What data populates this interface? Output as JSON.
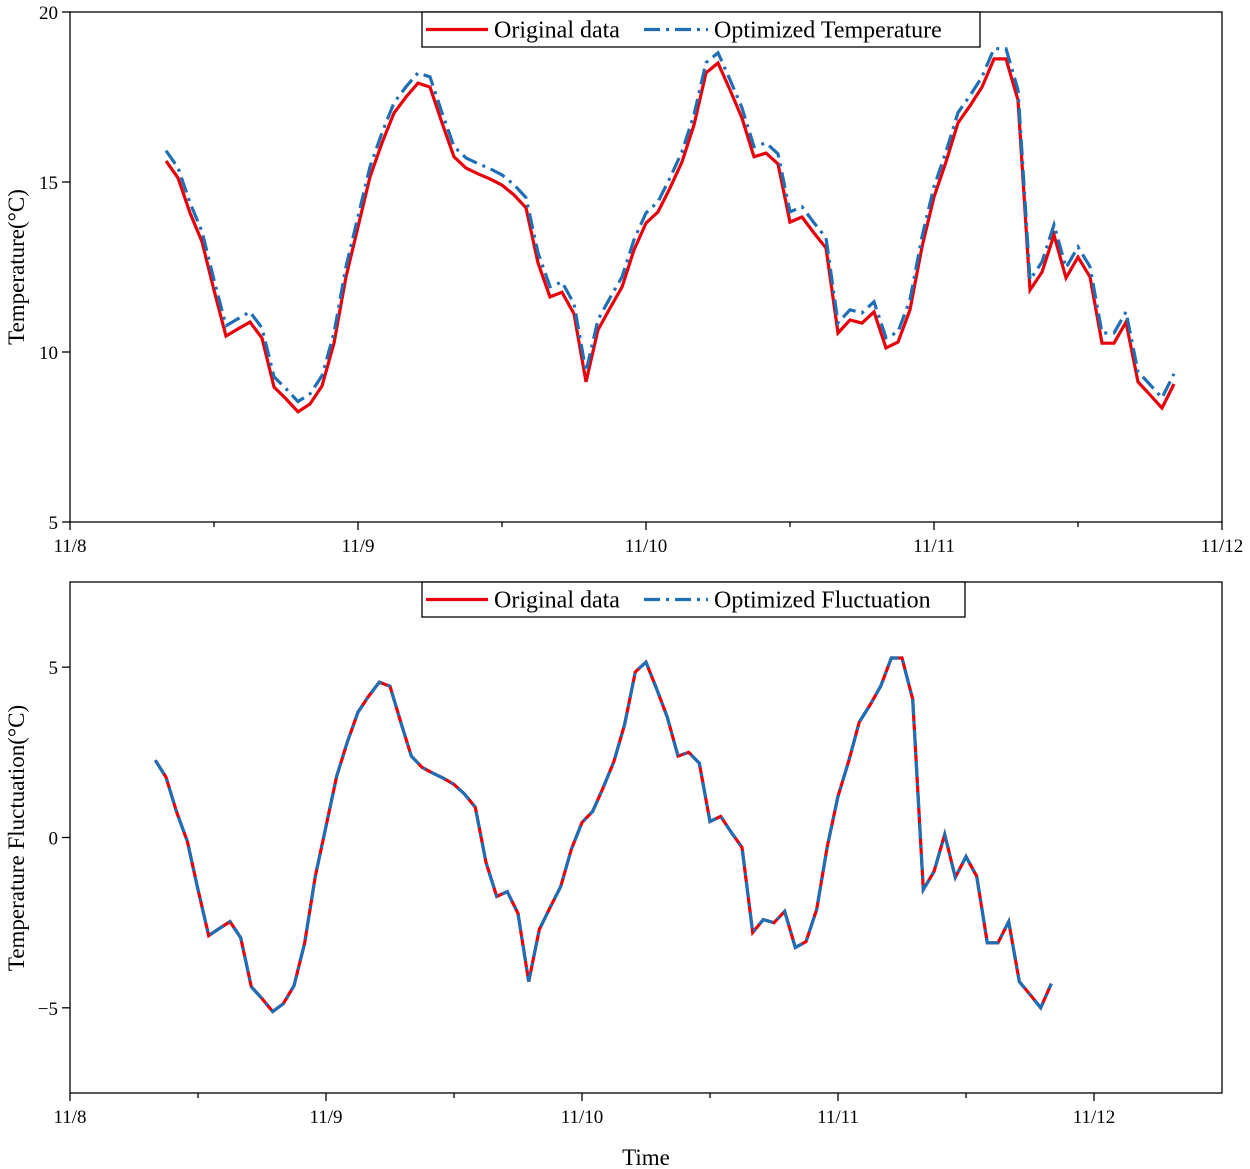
{
  "colors": {
    "original": "#e8000b",
    "optimized": "#1f6fb5",
    "axis": "#000000"
  },
  "time": {
    "start": "11/8 08:00",
    "step": "1 hour"
  },
  "chart_data": [
    {
      "type": "line",
      "title": "",
      "xlabel": "",
      "ylabel": "Temperature(°C)",
      "xlim_days": [
        0,
        4
      ],
      "ylim": [
        5,
        20
      ],
      "x_ticks": [
        "11/8",
        "11/9",
        "11/10",
        "11/11",
        "11/12"
      ],
      "y_ticks": [
        5,
        10,
        15,
        20
      ],
      "y_tick_labels": [
        "5",
        "10",
        "15",
        "20"
      ],
      "legend_position": "top-center",
      "x_start_day": 0.3333,
      "x_step_day": 0.041667,
      "series": [
        {
          "name": "Original data",
          "style": "solid",
          "values": [
            15.62,
            15.12,
            14.09,
            13.24,
            11.82,
            10.47,
            10.68,
            10.88,
            10.41,
            8.97,
            8.62,
            8.24,
            8.47,
            9.0,
            10.26,
            12.21,
            13.68,
            15.15,
            16.15,
            17.03,
            17.5,
            17.91,
            17.79,
            16.74,
            15.74,
            15.41,
            15.24,
            15.09,
            14.91,
            14.62,
            14.24,
            12.62,
            11.62,
            11.76,
            11.12,
            9.12,
            10.65,
            11.29,
            11.91,
            13.0,
            13.79,
            14.12,
            14.82,
            15.59,
            16.68,
            18.21,
            18.5,
            17.71,
            16.88,
            15.74,
            15.85,
            15.53,
            13.82,
            13.97,
            13.5,
            13.06,
            10.56,
            10.94,
            10.85,
            11.18,
            10.12,
            10.29,
            11.24,
            13.09,
            14.56,
            15.59,
            16.74,
            17.24,
            17.79,
            18.62,
            18.62,
            17.41,
            11.82,
            12.35,
            13.44,
            12.18,
            12.79,
            12.21,
            10.26,
            10.26,
            10.88,
            9.12,
            8.74,
            8.35,
            9.06
          ]
        },
        {
          "name": "Optimized Temperature",
          "style": "dash-dot",
          "offset_from_original": 0.3
        }
      ]
    },
    {
      "type": "line",
      "title": "",
      "xlabel": "Time",
      "ylabel": "Temperature  Fluctuation(°C)",
      "xlim_days": [
        0,
        4.5
      ],
      "ylim": [
        -7.5,
        7.5
      ],
      "x_ticks": [
        "11/8",
        "11/9",
        "11/10",
        "11/11",
        "11/12"
      ],
      "y_ticks": [
        -5,
        0,
        5
      ],
      "y_tick_labels": [
        "−5",
        "0",
        "5"
      ],
      "legend_position": "top-center",
      "x_start_day": 0.3333,
      "x_step_day": 0.041667,
      "series": [
        {
          "name": "Original data",
          "style": "solid",
          "values": [
            2.27,
            1.77,
            0.74,
            -0.11,
            -1.53,
            -2.88,
            -2.67,
            -2.47,
            -2.94,
            -4.38,
            -4.73,
            -5.11,
            -4.88,
            -4.35,
            -3.09,
            -1.14,
            0.33,
            1.8,
            2.8,
            3.68,
            4.15,
            4.56,
            4.44,
            3.39,
            2.39,
            2.06,
            1.89,
            1.74,
            1.56,
            1.27,
            0.89,
            -0.73,
            -1.73,
            -1.59,
            -2.23,
            -4.23,
            -2.7,
            -2.06,
            -1.44,
            -0.35,
            0.44,
            0.77,
            1.47,
            2.24,
            3.33,
            4.86,
            5.15,
            4.36,
            3.53,
            2.39,
            2.5,
            2.18,
            0.47,
            0.62,
            0.15,
            -0.29,
            -2.79,
            -2.41,
            -2.5,
            -2.17,
            -3.23,
            -3.06,
            -2.11,
            -0.26,
            1.21,
            2.24,
            3.39,
            3.89,
            4.44,
            5.27,
            5.27,
            4.06,
            -1.53,
            -1.0,
            0.09,
            -1.17,
            -0.56,
            -1.14,
            -3.09,
            -3.09,
            -2.47,
            -4.23,
            -4.61,
            -5.0,
            -4.29
          ]
        },
        {
          "name": "Optimized Fluctuation",
          "style": "dash-dot",
          "offset_from_original": 0
        }
      ]
    }
  ]
}
